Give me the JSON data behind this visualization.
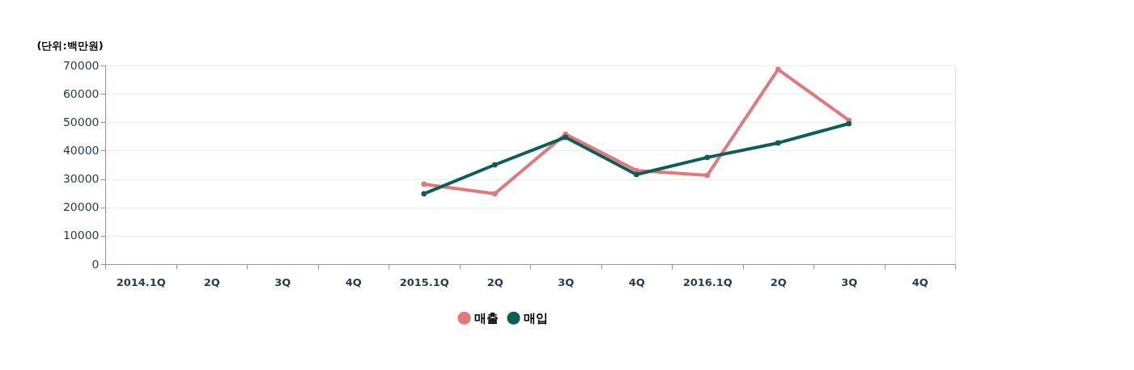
{
  "chart_data": {
    "type": "line",
    "ylabel": "(단위:백만원)",
    "categories": [
      "2014.1Q",
      "2Q",
      "3Q",
      "4Q",
      "2015.1Q",
      "2Q",
      "3Q",
      "4Q",
      "2016.1Q",
      "2Q",
      "3Q",
      "4Q"
    ],
    "series": [
      {
        "name": "매출",
        "color": "#e07a7a",
        "values": [
          null,
          null,
          null,
          null,
          28200,
          24800,
          45800,
          33000,
          31300,
          68600,
          50700,
          null
        ]
      },
      {
        "name": "매입",
        "color": "#0d5e57",
        "values": [
          null,
          null,
          null,
          null,
          24800,
          35000,
          44700,
          31600,
          37600,
          42700,
          49500,
          null
        ]
      }
    ],
    "ylim": [
      0,
      70000
    ],
    "yticks": [
      0,
      10000,
      20000,
      30000,
      40000,
      50000,
      60000,
      70000
    ],
    "grid": "y",
    "legend": "bottom",
    "marker": "circle",
    "line_style": "solid"
  }
}
